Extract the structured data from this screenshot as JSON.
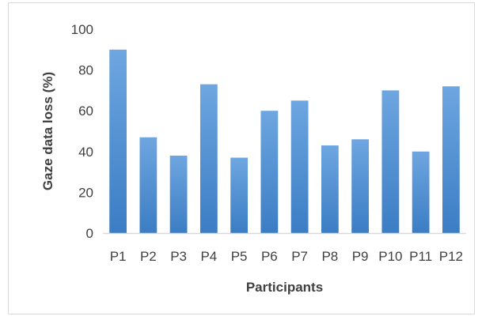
{
  "chart_data": {
    "type": "bar",
    "title": "",
    "xlabel": "Participants",
    "ylabel": "Gaze data loss (%)",
    "categories": [
      "P1",
      "P2",
      "P3",
      "P4",
      "P5",
      "P6",
      "P7",
      "P8",
      "P9",
      "P10",
      "P11",
      "P12"
    ],
    "values": [
      90,
      47,
      38,
      73,
      37,
      60,
      65,
      43,
      46,
      70,
      40,
      72
    ],
    "ylim": [
      0,
      100
    ],
    "yticks": [
      0,
      20,
      40,
      60,
      80,
      100
    ],
    "grid": false,
    "legend": "none",
    "colors": {
      "bar_top": "#6ea6e0",
      "bar_bottom": "#3b7dc4",
      "axis": "#d9d9d9",
      "text": "#404040"
    }
  }
}
